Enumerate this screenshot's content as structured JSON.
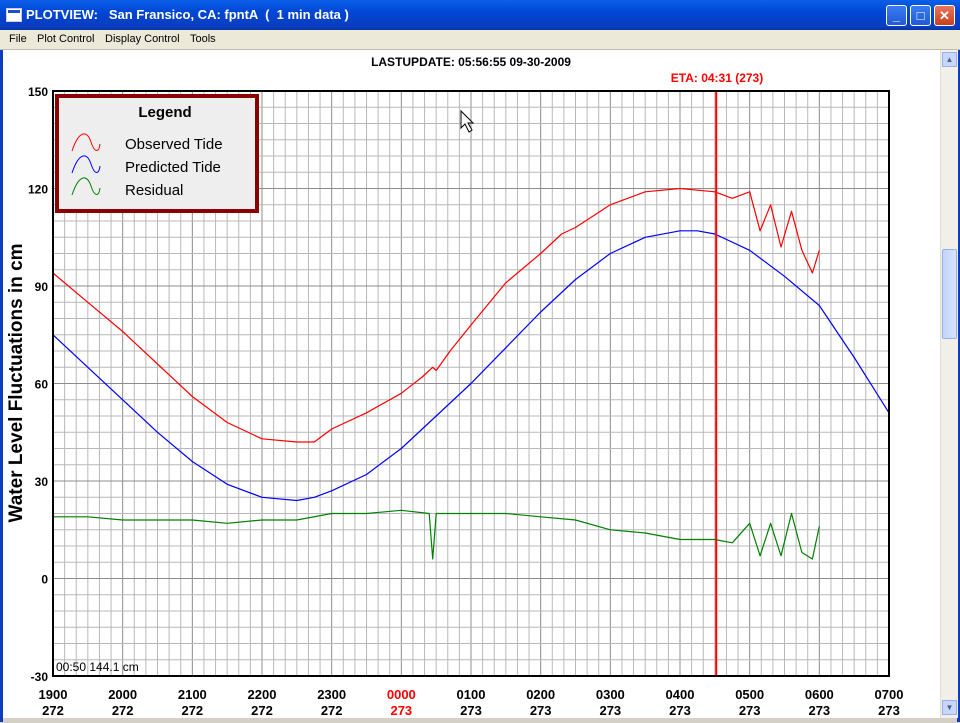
{
  "window": {
    "title": "PLOTVIEW:   San Fransico, CA: fpntA  (  1 min data )"
  },
  "menu": [
    "File",
    "Plot Control",
    "Display Control",
    "Tools"
  ],
  "header": {
    "last_update": "LASTUPDATE: 05:56:55  09-30-2009",
    "eta": "ETA: 04:31 (273)"
  },
  "cursor_readout": "00:50  144.1 cm",
  "colors": {
    "observed": "#ff0000",
    "predicted": "#0000ff",
    "residual": "#008000",
    "eta_line": "#ff0000",
    "legend_border": "#8b0000"
  },
  "chart_data": {
    "type": "line",
    "title": "",
    "xlabel": "",
    "ylabel": "Water Level Fluctuations in cm",
    "ylim": [
      -30,
      150
    ],
    "yticks": [
      -30,
      0,
      30,
      60,
      90,
      120,
      150
    ],
    "xlim": [
      19.0,
      31.0
    ],
    "xticks": [
      {
        "x": 19,
        "time": "1900",
        "day": "272"
      },
      {
        "x": 20,
        "time": "2000",
        "day": "272"
      },
      {
        "x": 21,
        "time": "2100",
        "day": "272"
      },
      {
        "x": 22,
        "time": "2200",
        "day": "272"
      },
      {
        "x": 23,
        "time": "2300",
        "day": "272"
      },
      {
        "x": 24,
        "time": "0000",
        "day": "273",
        "highlight": true
      },
      {
        "x": 25,
        "time": "0100",
        "day": "273"
      },
      {
        "x": 26,
        "time": "0200",
        "day": "273"
      },
      {
        "x": 27,
        "time": "0300",
        "day": "273"
      },
      {
        "x": 28,
        "time": "0400",
        "day": "273"
      },
      {
        "x": 29,
        "time": "0500",
        "day": "273"
      },
      {
        "x": 30,
        "time": "0600",
        "day": "273"
      },
      {
        "x": 31,
        "time": "0700",
        "day": "273"
      }
    ],
    "eta_x": 28.52,
    "grid": true,
    "legend": {
      "title": "Legend",
      "placement": "top-left",
      "entries": [
        "Observed Tide",
        "Predicted Tide",
        "Residual"
      ]
    },
    "series": [
      {
        "name": "Observed Tide",
        "x": [
          19.0,
          19.5,
          20.0,
          20.5,
          21.0,
          21.5,
          22.0,
          22.5,
          22.75,
          23.0,
          23.5,
          24.0,
          24.3,
          24.45,
          24.5,
          24.7,
          25.0,
          25.5,
          26.0,
          26.3,
          26.5,
          27.0,
          27.5,
          28.0,
          28.5,
          28.75,
          29.0,
          29.15,
          29.3,
          29.45,
          29.6,
          29.75,
          29.9,
          30.0
        ],
        "y": [
          94,
          85,
          76,
          66,
          56,
          48,
          43,
          42,
          42,
          46,
          51,
          57,
          62,
          65,
          64,
          70,
          78,
          91,
          100,
          106,
          108,
          115,
          119,
          120,
          119,
          117,
          119,
          107,
          115,
          102,
          113,
          101,
          94,
          101
        ]
      },
      {
        "name": "Predicted Tide",
        "x": [
          19.0,
          19.5,
          20.0,
          20.5,
          21.0,
          21.5,
          22.0,
          22.5,
          22.75,
          23.0,
          23.5,
          24.0,
          24.5,
          25.0,
          25.5,
          26.0,
          26.5,
          27.0,
          27.5,
          28.0,
          28.25,
          28.5,
          29.0,
          29.5,
          30.0,
          30.5,
          31.0
        ],
        "y": [
          75,
          65,
          55,
          45,
          36,
          29,
          25,
          24,
          25,
          27,
          32,
          40,
          50,
          60,
          71,
          82,
          92,
          100,
          105,
          107,
          107,
          106,
          101,
          93,
          84,
          68,
          51
        ]
      },
      {
        "name": "Residual",
        "x": [
          19.0,
          19.5,
          20.0,
          20.5,
          21.0,
          21.5,
          22.0,
          22.5,
          23.0,
          23.5,
          24.0,
          24.4,
          24.45,
          24.5,
          25.0,
          25.5,
          26.0,
          26.5,
          27.0,
          27.5,
          28.0,
          28.5,
          28.75,
          29.0,
          29.15,
          29.3,
          29.45,
          29.6,
          29.75,
          29.9,
          30.0
        ],
        "y": [
          19,
          19,
          18,
          18,
          18,
          17,
          18,
          18,
          20,
          20,
          21,
          20,
          6,
          20,
          20,
          20,
          19,
          18,
          15,
          14,
          12,
          12,
          11,
          17,
          7,
          17,
          7,
          20,
          8,
          6,
          16
        ]
      }
    ]
  }
}
